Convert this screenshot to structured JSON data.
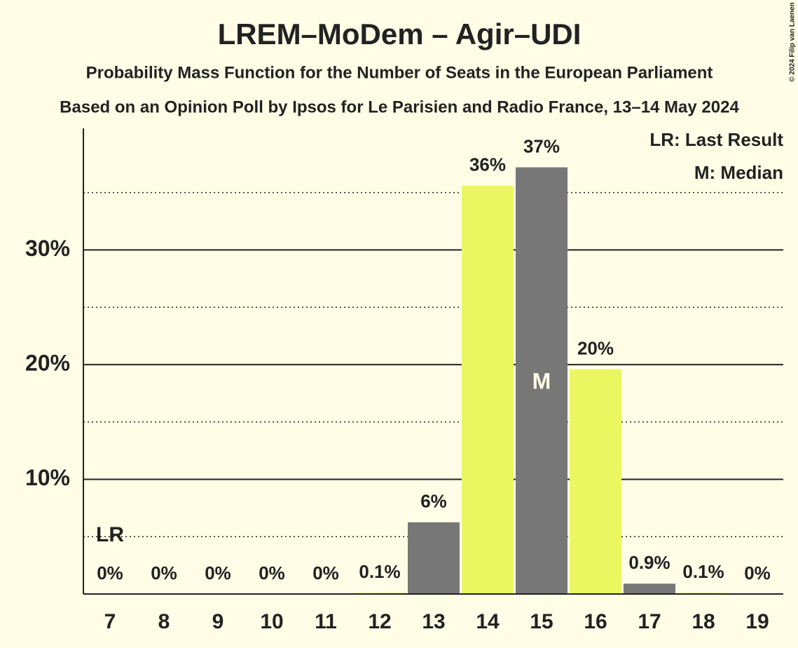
{
  "chart_data": {
    "type": "bar",
    "title": "LREM–MoDem – Agir–UDI",
    "subtitle": "Probability Mass Function for the Number of Seats in the European Parliament",
    "subtitle2": "Based on an Opinion Poll by Ipsos for Le Parisien and Radio France, 13–14 May 2024",
    "copyright": "© 2024 Filip van Laenen",
    "categories": [
      "7",
      "8",
      "9",
      "10",
      "11",
      "12",
      "13",
      "14",
      "15",
      "16",
      "17",
      "18",
      "19"
    ],
    "values": [
      0,
      0,
      0,
      0,
      0,
      0.1,
      6.25,
      35.6,
      37.2,
      19.6,
      0.9,
      0.1,
      0
    ],
    "value_labels": [
      "0%",
      "0%",
      "0%",
      "0%",
      "0%",
      "0.1%",
      "6%",
      "36%",
      "37%",
      "20%",
      "0.9%",
      "0.1%",
      "0%"
    ],
    "colors": [
      "#777777",
      "#ebf760",
      "#777777",
      "#ebf760",
      "#777777",
      "#ebf760",
      "#777777",
      "#ebf760",
      "#777777",
      "#ebf760",
      "#777777",
      "#ebf760",
      "#777777"
    ],
    "ylim": [
      0,
      40.6
    ],
    "yticks": [
      {
        "value": 10,
        "label": "10%"
      },
      {
        "value": 20,
        "label": "20%"
      },
      {
        "value": 30,
        "label": "30%"
      }
    ],
    "minor_yticks": [
      5,
      15,
      25,
      35
    ],
    "grid": true,
    "last_result": {
      "x": "7",
      "label": "LR"
    },
    "median": {
      "x": "15",
      "label": "M"
    },
    "legend": [
      "LR: Last Result",
      "M: Median"
    ]
  }
}
